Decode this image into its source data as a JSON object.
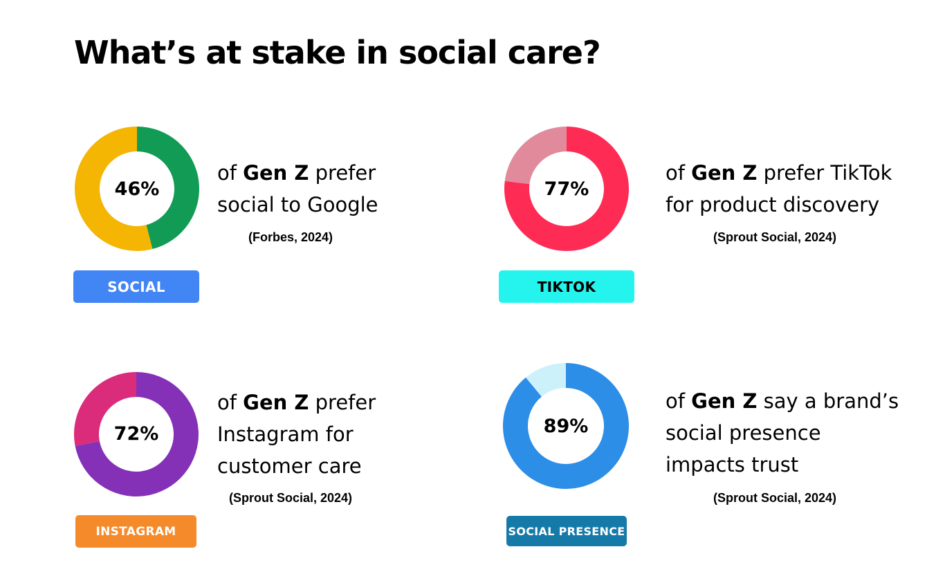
{
  "title": "What’s at stake in social care?",
  "chart_data": [
    {
      "type": "pie",
      "value": 46,
      "percent_label": "46%",
      "colors": {
        "value": "#129B55",
        "rest": "#F4B503"
      },
      "text": {
        "pre": "of ",
        "bold": "Gen Z",
        "line1_rest": " prefer",
        "line2": "social to Google",
        "line3": ""
      },
      "source": "(Forbes, 2024)",
      "tag": {
        "label": "SOCIAL",
        "bg": "#4285F4",
        "color": "#ffffff"
      }
    },
    {
      "type": "pie",
      "value": 77,
      "percent_label": "77%",
      "colors": {
        "value": "#FE2C55",
        "rest": "#E08A9C"
      },
      "text": {
        "pre": "of ",
        "bold": "Gen Z",
        "line1_rest": " prefer TikTok",
        "line2": "for product discovery",
        "line3": ""
      },
      "source": "(Sprout Social, 2024)",
      "tag": {
        "label": "TIKTOK",
        "bg": "#25F4EE",
        "color": "#000000"
      }
    },
    {
      "type": "pie",
      "value": 72,
      "percent_label": "72%",
      "colors": {
        "value": "#8431B8",
        "rest": "#DA2C7B"
      },
      "text": {
        "pre": "of ",
        "bold": "Gen Z",
        "line1_rest": " prefer",
        "line2": "Instagram for",
        "line3": "customer care"
      },
      "source": "(Sprout Social, 2024)",
      "tag": {
        "label": "INSTAGRAM",
        "bg": "#F58A2B",
        "color": "#ffffff"
      }
    },
    {
      "type": "pie",
      "value": 89,
      "percent_label": "89%",
      "colors": {
        "value": "#2C8EE6",
        "rest": "#CDF1FA"
      },
      "text": {
        "pre": "of ",
        "bold": "Gen Z",
        "line1_rest": " say a brand’s",
        "line2": "social presence",
        "line3": "impacts trust"
      },
      "source": "(Sprout Social, 2024)",
      "tag": {
        "label": "SOCIAL PRESENCE",
        "bg": "#167AA9",
        "color": "#ffffff"
      }
    }
  ]
}
